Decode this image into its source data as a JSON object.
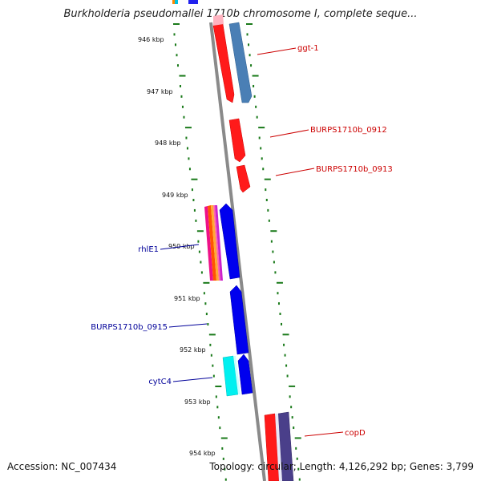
{
  "title": "Burkholderia pseudomallei 1710b chromosome I, complete seque...",
  "footer": {
    "accession": "Accession: NC_007434",
    "summary": "Topology: circular; Length: 4,126,292 bp; Genes: 3,799"
  },
  "ticks": [
    "946 kbp",
    "947 kbp",
    "948 kbp",
    "949 kbp",
    "950 kbp",
    "951 kbp",
    "952 kbp",
    "953 kbp",
    "954 kbp"
  ],
  "genes_right": [
    {
      "name": "ggt-1",
      "color": "#cc0000"
    },
    {
      "name": "BURPS1710b_0912",
      "color": "#cc0000"
    },
    {
      "name": "BURPS1710b_0913",
      "color": "#cc0000"
    },
    {
      "name": "copD",
      "color": "#cc0000"
    }
  ],
  "genes_left": [
    {
      "name": "rhlE1",
      "color": "#000099"
    },
    {
      "name": "BURPS1710b_0915",
      "color": "#000099"
    },
    {
      "name": "cytC4",
      "color": "#000099"
    }
  ],
  "colors": {
    "backbone": "#8a8a8a",
    "ruler_dots": "#1a7a1a",
    "gene_red": "#ff0000",
    "cds_red": "#d40000",
    "steel_blue": "#4a7fb5",
    "gene_blue": "#0000ee",
    "cyan": "#00f0f0",
    "slate": "#4a3f8a"
  }
}
